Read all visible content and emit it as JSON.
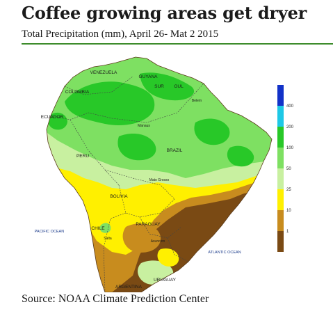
{
  "header": {
    "title": "Coffee growing areas get dryer",
    "subtitle": "Total Precipitation (mm), April 26- Mat 2 2015"
  },
  "map": {
    "ocean_labels": [
      "PACIFIC OCEAN",
      "ATLANTIC OCEAN"
    ],
    "country_labels": [
      "VENEZUELA",
      "GUYANA",
      "SUR",
      "GUL",
      "COLOMBIA",
      "ECUADOR",
      "PERU",
      "BRAZIL",
      "BOLIVIA",
      "CHILE",
      "PARAGUAY",
      "URUGUAY",
      "ARGENTINA"
    ],
    "place_labels": [
      "Manaus",
      "Belem",
      "Mato Grosso",
      "Salta",
      "Asuncion"
    ]
  },
  "legend": {
    "title": "Total Precipitation (mm)",
    "bins": [
      {
        "label": "",
        "color": "#1232c8"
      },
      {
        "label": "400",
        "color": "#1ec8e6"
      },
      {
        "label": "200",
        "color": "#28c828"
      },
      {
        "label": "100",
        "color": "#7ee062"
      },
      {
        "label": "50",
        "color": "#c8f0a0"
      },
      {
        "label": "25",
        "color": "#fff000"
      },
      {
        "label": "10",
        "color": "#c88c1e"
      },
      {
        "label": "1",
        "color": "#7a4a14"
      }
    ]
  },
  "footer": {
    "source": "Source: NOAA Climate Prediction Center"
  },
  "colors": {
    "rule": "#3d8c2c",
    "ocean": "#ffffff"
  }
}
